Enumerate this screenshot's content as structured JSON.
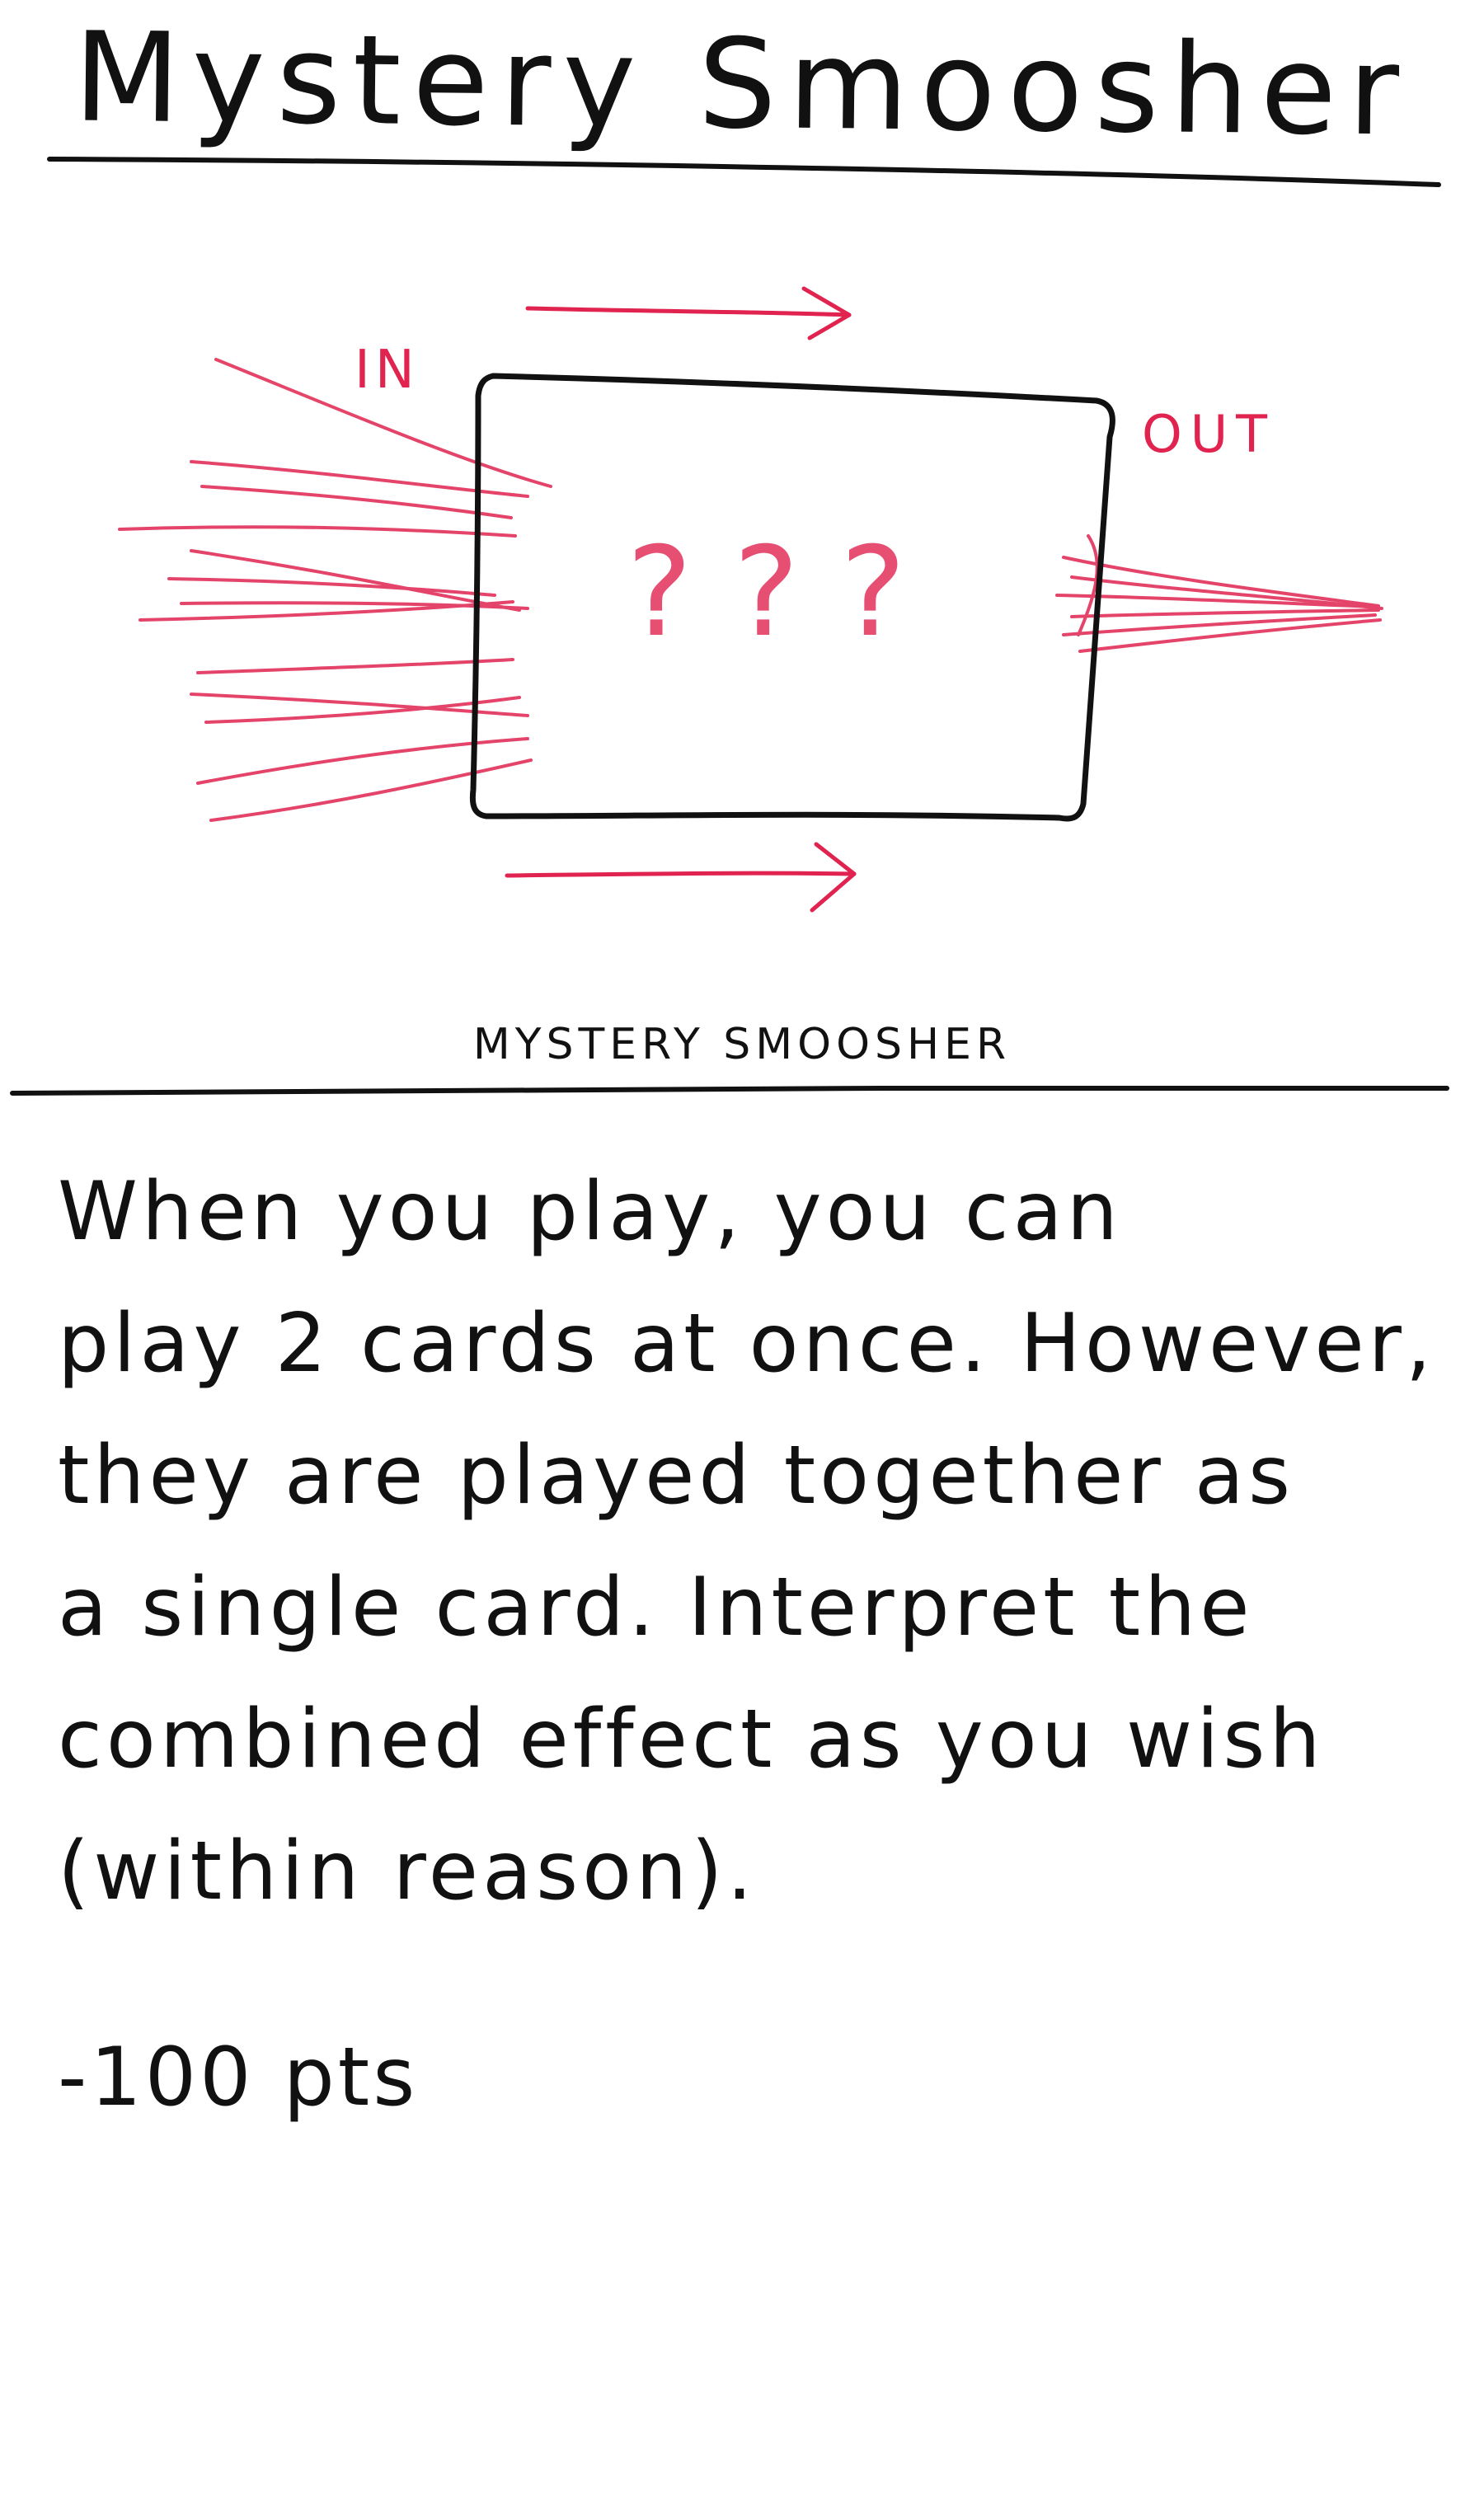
{
  "card": {
    "title": "Mystery Smoosher",
    "small_title": "MYSTERY SMOOSHER",
    "diagram": {
      "in_label": "IN",
      "out_label": "OUT",
      "box_label": "???"
    },
    "rules_lines": [
      "When you play, you can",
      "play 2 cards at once. However,",
      "they are played together as",
      "a single card. Interpret the",
      "combined effect as you wish",
      "(within reason)."
    ],
    "points": "-100 pts"
  },
  "colors": {
    "ink": "#111111",
    "pen_red": "#e0244f",
    "paper": "#ffffff"
  }
}
